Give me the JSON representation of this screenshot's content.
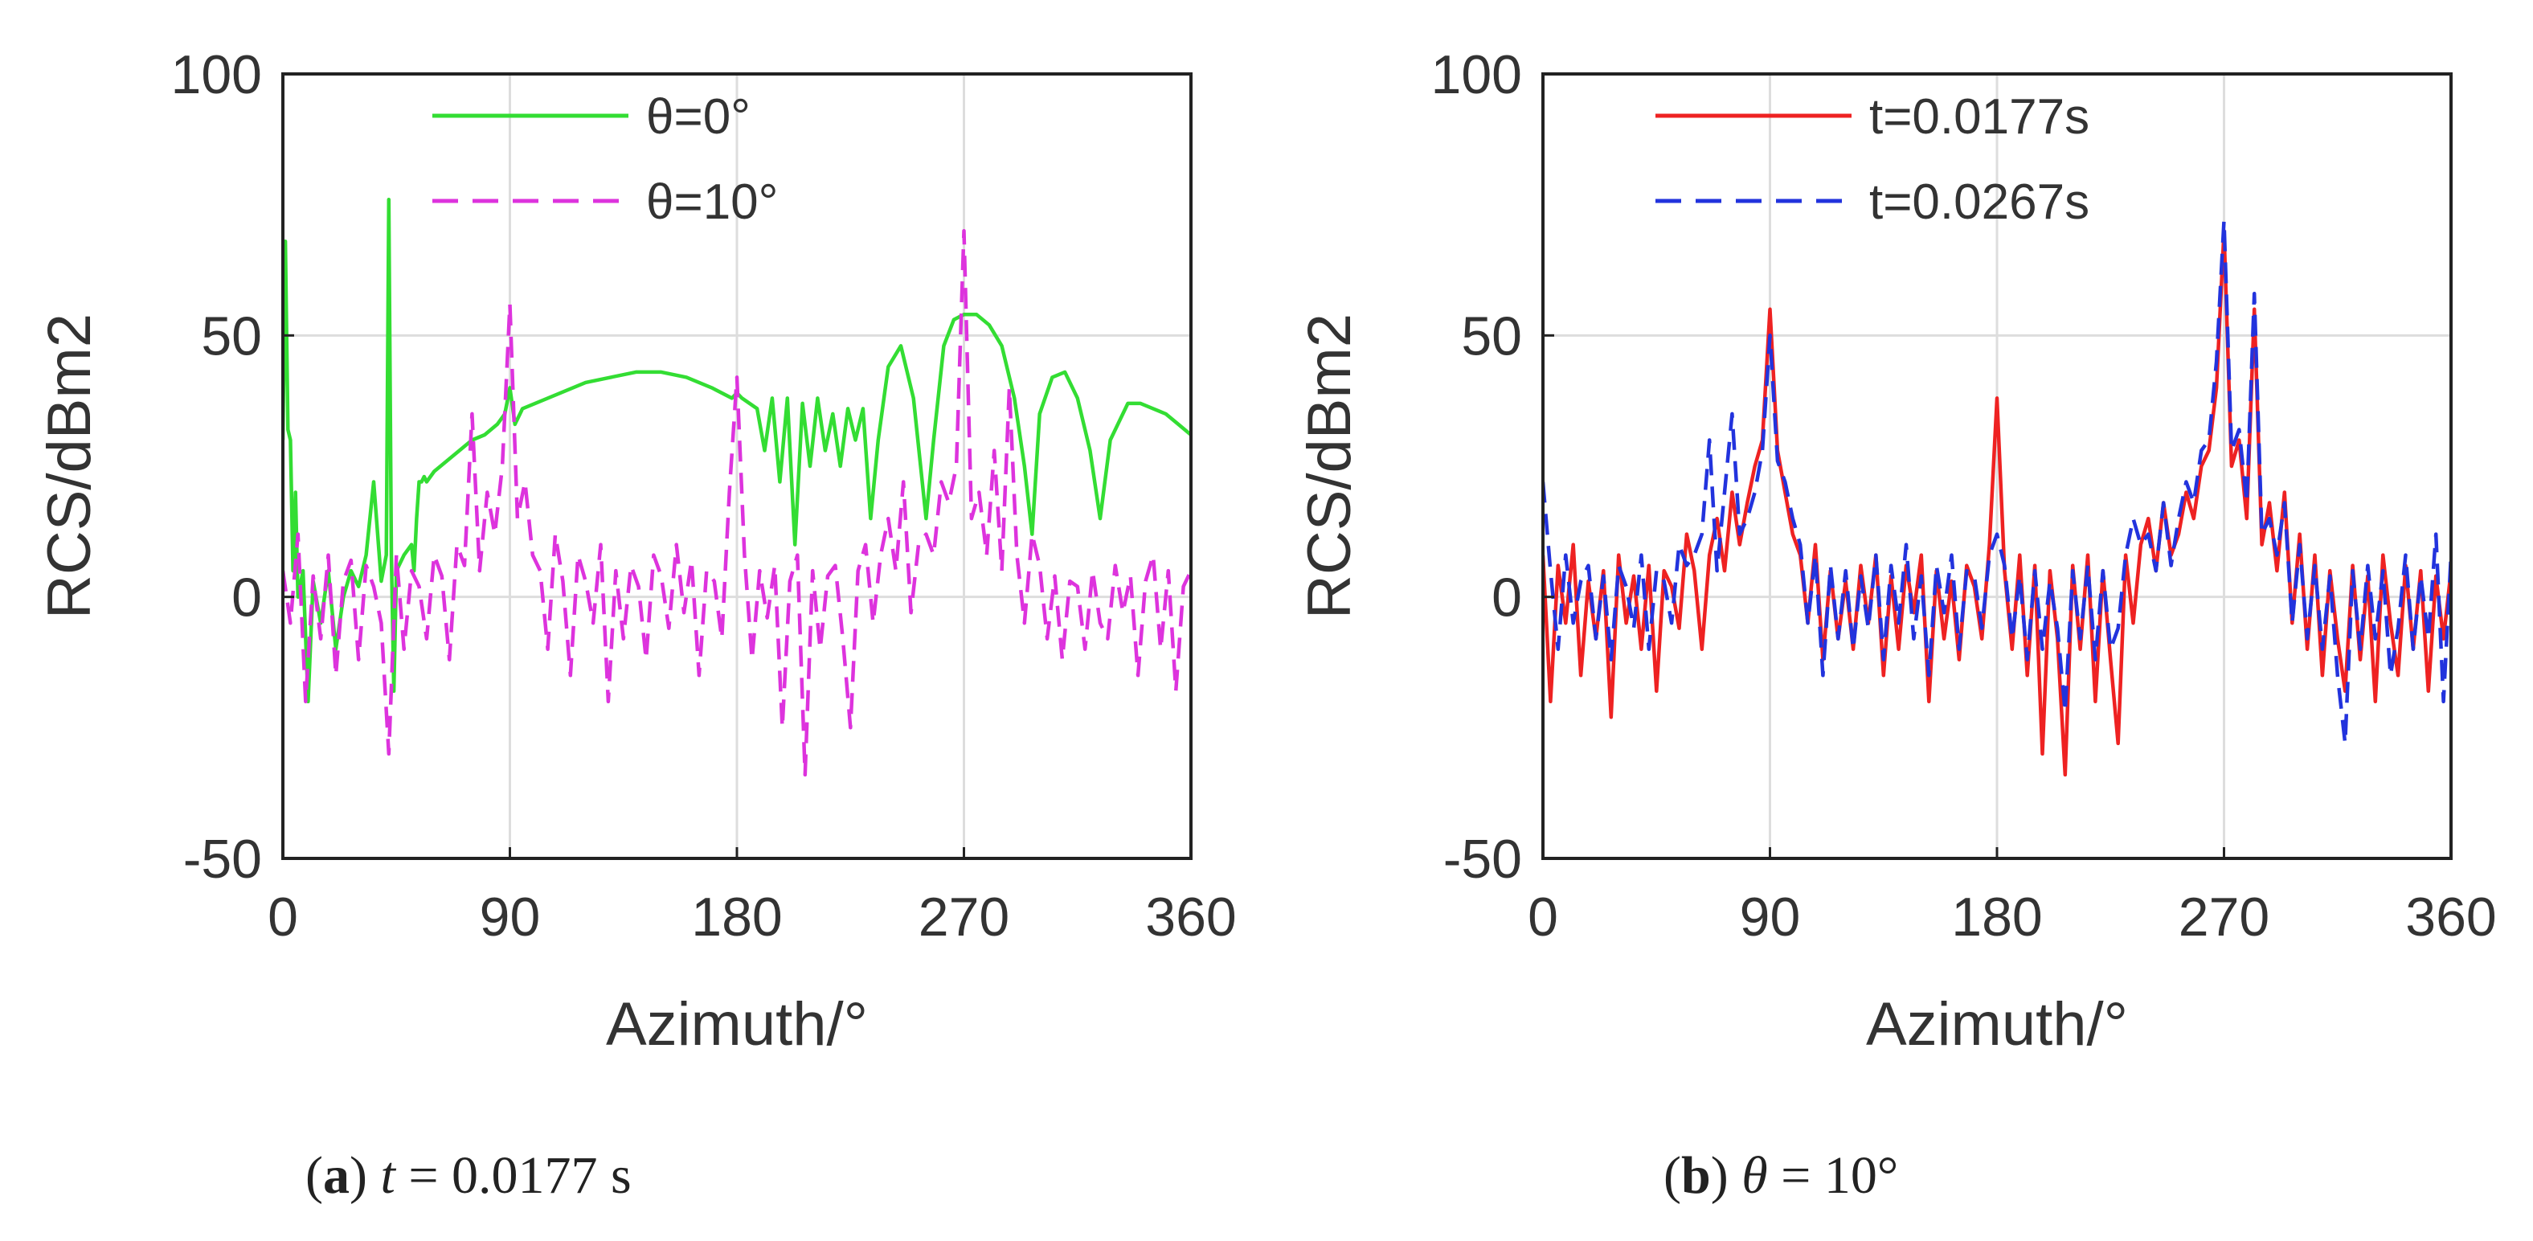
{
  "figure": {
    "captions": [
      {
        "label": "a",
        "text": "t = 0.0177 s",
        "var": "t",
        "rest": " = 0.0177 s"
      },
      {
        "label": "b",
        "text": "θ = 10°",
        "var": "θ",
        "rest": " = 10°"
      }
    ]
  },
  "chart_data": [
    {
      "type": "line",
      "panel": "a",
      "xlabel": "Azimuth/°",
      "ylabel": "RCS/dBm2",
      "xlim": [
        0,
        360
      ],
      "ylim": [
        -50,
        100
      ],
      "xticks": [
        0,
        90,
        180,
        270,
        360
      ],
      "yticks": [
        -50,
        0,
        50,
        100
      ],
      "grid": true,
      "legend_position": "top-left",
      "series": [
        {
          "name": "θ=0°",
          "color": "#33dd33",
          "style": "solid",
          "x": [
            0,
            1,
            2,
            3,
            4,
            5,
            6,
            8,
            10,
            12,
            15,
            18,
            21,
            24,
            27,
            30,
            33,
            36,
            39,
            41,
            42,
            43,
            44,
            45,
            48,
            51,
            52,
            53,
            54,
            55,
            56,
            57,
            60,
            65,
            70,
            75,
            80,
            85,
            88,
            90,
            92,
            95,
            100,
            110,
            120,
            130,
            140,
            150,
            160,
            170,
            178,
            180,
            182,
            185,
            188,
            191,
            194,
            197,
            200,
            203,
            206,
            209,
            212,
            215,
            218,
            221,
            224,
            227,
            230,
            233,
            236,
            240,
            245,
            250,
            255,
            258,
            262,
            266,
            270,
            275,
            280,
            285,
            290,
            294,
            297,
            300,
            305,
            310,
            315,
            320,
            324,
            328,
            335,
            340,
            345,
            350,
            355,
            360
          ],
          "values": [
            30,
            68,
            32,
            30,
            5,
            20,
            0,
            5,
            -20,
            3,
            -5,
            5,
            -10,
            0,
            5,
            2,
            8,
            22,
            3,
            8,
            76,
            8,
            -18,
            5,
            8,
            10,
            5,
            15,
            22,
            22,
            23,
            22,
            24,
            26,
            28,
            30,
            31,
            33,
            35,
            40,
            33,
            36,
            37,
            39,
            41,
            42,
            43,
            43,
            42,
            40,
            38,
            39,
            38,
            37,
            36,
            28,
            38,
            22,
            38,
            10,
            37,
            25,
            38,
            28,
            35,
            25,
            36,
            30,
            36,
            15,
            30,
            44,
            48,
            38,
            15,
            30,
            48,
            53,
            54,
            54,
            52,
            48,
            38,
            25,
            12,
            35,
            42,
            43,
            38,
            28,
            15,
            30,
            37,
            37,
            36,
            35,
            33,
            31
          ]
        },
        {
          "name": "θ=10°",
          "color": "#dd33dd",
          "style": "dashed",
          "x": [
            0,
            3,
            6,
            9,
            12,
            15,
            18,
            21,
            24,
            27,
            30,
            33,
            36,
            39,
            42,
            45,
            48,
            51,
            54,
            57,
            60,
            63,
            66,
            69,
            72,
            75,
            78,
            81,
            84,
            87,
            90,
            93,
            96,
            99,
            102,
            105,
            108,
            111,
            114,
            117,
            120,
            123,
            126,
            129,
            132,
            135,
            138,
            141,
            144,
            147,
            150,
            153,
            156,
            159,
            162,
            165,
            168,
            171,
            174,
            177,
            180,
            183,
            186,
            189,
            192,
            195,
            198,
            201,
            204,
            207,
            210,
            213,
            216,
            219,
            222,
            225,
            228,
            231,
            234,
            237,
            240,
            243,
            246,
            249,
            252,
            255,
            258,
            261,
            264,
            267,
            270,
            273,
            276,
            279,
            282,
            285,
            288,
            291,
            294,
            297,
            300,
            303,
            306,
            309,
            312,
            315,
            318,
            321,
            324,
            327,
            330,
            333,
            336,
            339,
            342,
            345,
            348,
            351,
            354,
            357,
            360
          ],
          "values": [
            5,
            -5,
            12,
            -20,
            4,
            -8,
            8,
            -15,
            3,
            7,
            -12,
            6,
            2,
            -5,
            -30,
            8,
            -10,
            5,
            2,
            -8,
            8,
            4,
            -12,
            10,
            6,
            35,
            5,
            20,
            12,
            25,
            56,
            15,
            22,
            8,
            5,
            -10,
            12,
            3,
            -15,
            8,
            3,
            -5,
            10,
            -20,
            5,
            -8,
            6,
            2,
            -12,
            8,
            4,
            -6,
            10,
            -3,
            7,
            -15,
            5,
            3,
            -8,
            20,
            42,
            8,
            -12,
            5,
            -4,
            6,
            -25,
            3,
            8,
            -34,
            5,
            -10,
            4,
            6,
            -8,
            -25,
            5,
            10,
            -5,
            8,
            15,
            5,
            22,
            -3,
            10,
            12,
            8,
            22,
            18,
            25,
            70,
            15,
            20,
            8,
            28,
            5,
            40,
            8,
            -5,
            12,
            6,
            -8,
            4,
            -12,
            3,
            2,
            -10,
            5,
            -5,
            -8,
            6,
            -3,
            4,
            -15,
            3,
            8,
            -10,
            5,
            -18,
            2,
            5
          ]
        }
      ]
    },
    {
      "type": "line",
      "panel": "b",
      "xlabel": "Azimuth/°",
      "ylabel": "RCS/dBm2",
      "xlim": [
        0,
        360
      ],
      "ylim": [
        -50,
        100
      ],
      "xticks": [
        0,
        90,
        180,
        270,
        360
      ],
      "yticks": [
        -50,
        0,
        50,
        100
      ],
      "grid": true,
      "legend_position": "top-left",
      "series": [
        {
          "name": "t=0.0177s",
          "color": "#ee2222",
          "style": "solid",
          "x": [
            0,
            3,
            6,
            9,
            12,
            15,
            18,
            21,
            24,
            27,
            30,
            33,
            36,
            39,
            42,
            45,
            48,
            51,
            54,
            57,
            60,
            63,
            66,
            69,
            72,
            75,
            78,
            81,
            84,
            87,
            90,
            93,
            96,
            99,
            102,
            105,
            108,
            111,
            114,
            117,
            120,
            123,
            126,
            129,
            132,
            135,
            138,
            141,
            144,
            147,
            150,
            153,
            156,
            159,
            162,
            165,
            168,
            171,
            174,
            177,
            180,
            183,
            186,
            189,
            192,
            195,
            198,
            201,
            204,
            207,
            210,
            213,
            216,
            219,
            222,
            225,
            228,
            231,
            234,
            237,
            240,
            243,
            246,
            249,
            252,
            255,
            258,
            261,
            264,
            267,
            270,
            273,
            276,
            279,
            282,
            285,
            288,
            291,
            294,
            297,
            300,
            303,
            306,
            309,
            312,
            315,
            318,
            321,
            324,
            327,
            330,
            333,
            336,
            339,
            342,
            345,
            348,
            351,
            354,
            357,
            360
          ],
          "values": [
            8,
            -20,
            6,
            -5,
            10,
            -15,
            3,
            -8,
            5,
            -23,
            8,
            -5,
            4,
            -10,
            6,
            -18,
            5,
            2,
            -6,
            12,
            5,
            -10,
            8,
            15,
            5,
            20,
            10,
            18,
            25,
            30,
            55,
            28,
            20,
            12,
            8,
            -5,
            10,
            -12,
            5,
            -8,
            3,
            -10,
            6,
            -5,
            8,
            -15,
            4,
            -10,
            6,
            -3,
            8,
            -20,
            5,
            -8,
            3,
            -12,
            6,
            2,
            -8,
            10,
            38,
            5,
            -10,
            8,
            -15,
            6,
            -30,
            5,
            -8,
            -34,
            6,
            -10,
            8,
            -20,
            5,
            -12,
            -28,
            8,
            -5,
            10,
            15,
            5,
            18,
            8,
            12,
            20,
            15,
            25,
            28,
            40,
            70,
            25,
            30,
            15,
            55,
            10,
            18,
            5,
            20,
            -5,
            12,
            -10,
            8,
            -15,
            5,
            -8,
            -18,
            6,
            -12,
            4,
            -20,
            8,
            -5,
            -15,
            6,
            -10,
            5,
            -18,
            4,
            -8,
            5
          ]
        },
        {
          "name": "t=0.0267s",
          "color": "#2233dd",
          "style": "dashed",
          "x": [
            0,
            3,
            6,
            9,
            12,
            15,
            18,
            21,
            24,
            27,
            30,
            33,
            36,
            39,
            42,
            45,
            48,
            51,
            54,
            57,
            60,
            63,
            66,
            69,
            72,
            75,
            78,
            81,
            84,
            87,
            90,
            93,
            96,
            99,
            102,
            105,
            108,
            111,
            114,
            117,
            120,
            123,
            126,
            129,
            132,
            135,
            138,
            141,
            144,
            147,
            150,
            153,
            156,
            159,
            162,
            165,
            168,
            171,
            174,
            177,
            180,
            183,
            186,
            189,
            192,
            195,
            198,
            201,
            204,
            207,
            210,
            213,
            216,
            219,
            222,
            225,
            228,
            231,
            234,
            237,
            240,
            243,
            246,
            249,
            252,
            255,
            258,
            261,
            264,
            267,
            270,
            273,
            276,
            279,
            282,
            285,
            288,
            291,
            294,
            297,
            300,
            303,
            306,
            309,
            312,
            315,
            318,
            321,
            324,
            327,
            330,
            333,
            336,
            339,
            342,
            345,
            348,
            351,
            354,
            357,
            360
          ],
          "values": [
            22,
            5,
            -10,
            8,
            -5,
            3,
            6,
            -8,
            4,
            -12,
            6,
            2,
            -6,
            8,
            -10,
            5,
            3,
            -5,
            10,
            6,
            8,
            12,
            30,
            5,
            20,
            35,
            12,
            15,
            20,
            28,
            50,
            26,
            22,
            15,
            10,
            -5,
            8,
            -15,
            6,
            -8,
            5,
            -10,
            4,
            -6,
            8,
            -12,
            6,
            -5,
            10,
            -8,
            4,
            -15,
            6,
            -3,
            8,
            -10,
            5,
            4,
            -6,
            8,
            12,
            6,
            -8,
            4,
            -12,
            5,
            -10,
            3,
            -6,
            -22,
            5,
            -8,
            6,
            -12,
            5,
            -10,
            -6,
            8,
            15,
            10,
            12,
            5,
            18,
            6,
            15,
            22,
            18,
            28,
            30,
            45,
            72,
            28,
            32,
            18,
            58,
            12,
            15,
            8,
            18,
            -5,
            10,
            -8,
            6,
            -10,
            4,
            -15,
            -28,
            5,
            -10,
            6,
            -8,
            5,
            -15,
            -6,
            8,
            -10,
            4,
            -8,
            12,
            -20,
            8
          ]
        }
      ]
    }
  ]
}
